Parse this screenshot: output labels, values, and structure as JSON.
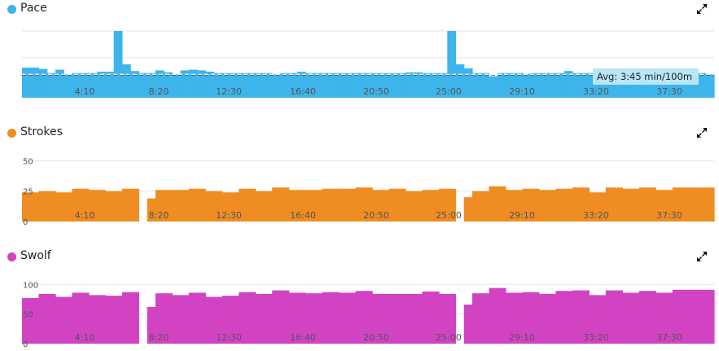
{
  "charts": [
    {
      "id": "pace",
      "title": "Pace",
      "color": "#3db5eb",
      "icon": "expand-icon",
      "ylim": [
        0,
        100
      ],
      "yticks": [],
      "avg_line": 35,
      "tooltip": "Avg: 3:45 min/100m"
    },
    {
      "id": "strokes",
      "title": "Strokes",
      "color": "#ef8d22",
      "icon": "expand-icon",
      "ylim": [
        0,
        55
      ],
      "yticks": [
        {
          "value": 50,
          "label": "50"
        },
        {
          "value": 25,
          "label": "25"
        },
        {
          "value": 0,
          "label": "0"
        }
      ]
    },
    {
      "id": "swolf",
      "title": "Swolf",
      "color": "#d243c4",
      "icon": "expand-icon",
      "ylim": [
        0,
        110
      ],
      "yticks": [
        {
          "value": 100,
          "label": "100"
        },
        {
          "value": 50,
          "label": "50"
        },
        {
          "value": 0,
          "label": "0"
        }
      ]
    }
  ],
  "chart_data": [
    {
      "type": "area",
      "title": "Pace",
      "x_tick_labels": [
        "4:10",
        "8:20",
        "12:30",
        "16:40",
        "20:50",
        "25:00",
        "29:10",
        "33:20",
        "37:30"
      ],
      "x_range": [
        "0:00",
        "39:40"
      ],
      "values": [
        45,
        45,
        43,
        37,
        42,
        35,
        37,
        37,
        37,
        39,
        39,
        100,
        50,
        40,
        37,
        37,
        41,
        38,
        35,
        41,
        42,
        41,
        39,
        37,
        37,
        37,
        37,
        37,
        37,
        37,
        35,
        37,
        37,
        39,
        37,
        37,
        37,
        37,
        37,
        37,
        37,
        37,
        37,
        37,
        37,
        37,
        38,
        38,
        37,
        37,
        37,
        100,
        50,
        44,
        37,
        37,
        32,
        37,
        37,
        37,
        36,
        37,
        37,
        37,
        37,
        40,
        37,
        37,
        37,
        35,
        34,
        36,
        36,
        37,
        37,
        37,
        37,
        37,
        37,
        37,
        37,
        37,
        35
      ],
      "series_name": "Pace",
      "avg_label": "Avg: 3:45 min/100m"
    },
    {
      "type": "area",
      "title": "Strokes",
      "x_tick_labels": [
        "4:10",
        "8:20",
        "12:30",
        "16:40",
        "20:50",
        "25:00",
        "29:10",
        "33:20",
        "37:30"
      ],
      "yticks": [
        0,
        25,
        50
      ],
      "ylim": [
        0,
        55
      ],
      "values": [
        24,
        24,
        25,
        25,
        24,
        24,
        27,
        27,
        26,
        26,
        25,
        25,
        27,
        27,
        0,
        19,
        26,
        26,
        26,
        26,
        27,
        27,
        25,
        25,
        24,
        24,
        27,
        27,
        25,
        25,
        28,
        28,
        26,
        26,
        26,
        26,
        27,
        27,
        27,
        27,
        28,
        28,
        26,
        26,
        27,
        27,
        25,
        25,
        26,
        26,
        27,
        27,
        0,
        20,
        25,
        25,
        29,
        29,
        26,
        26,
        27,
        27,
        26,
        26,
        27,
        27,
        28,
        28,
        24,
        24,
        28,
        28,
        27,
        27,
        28,
        28,
        26,
        26,
        28,
        28,
        28,
        28,
        28
      ],
      "series_name": "Strokes"
    },
    {
      "type": "area",
      "title": "Swolf",
      "x_tick_labels": [
        "4:10",
        "8:20",
        "12:30",
        "16:40",
        "20:50",
        "25:00",
        "29:10",
        "33:20",
        "37:30"
      ],
      "yticks": [
        0,
        50,
        100
      ],
      "ylim": [
        0,
        110
      ],
      "values": [
        77,
        77,
        84,
        84,
        79,
        79,
        86,
        86,
        82,
        82,
        81,
        81,
        87,
        87,
        0,
        62,
        85,
        85,
        82,
        82,
        86,
        86,
        79,
        79,
        81,
        81,
        87,
        87,
        84,
        84,
        90,
        90,
        86,
        86,
        85,
        85,
        87,
        87,
        86,
        86,
        89,
        89,
        84,
        84,
        84,
        84,
        84,
        84,
        88,
        88,
        84,
        84,
        0,
        66,
        85,
        85,
        94,
        94,
        86,
        86,
        87,
        87,
        84,
        84,
        89,
        89,
        90,
        90,
        82,
        82,
        90,
        90,
        86,
        86,
        89,
        89,
        86,
        86,
        91,
        91,
        91,
        91,
        91
      ],
      "series_name": "Swolf"
    }
  ]
}
